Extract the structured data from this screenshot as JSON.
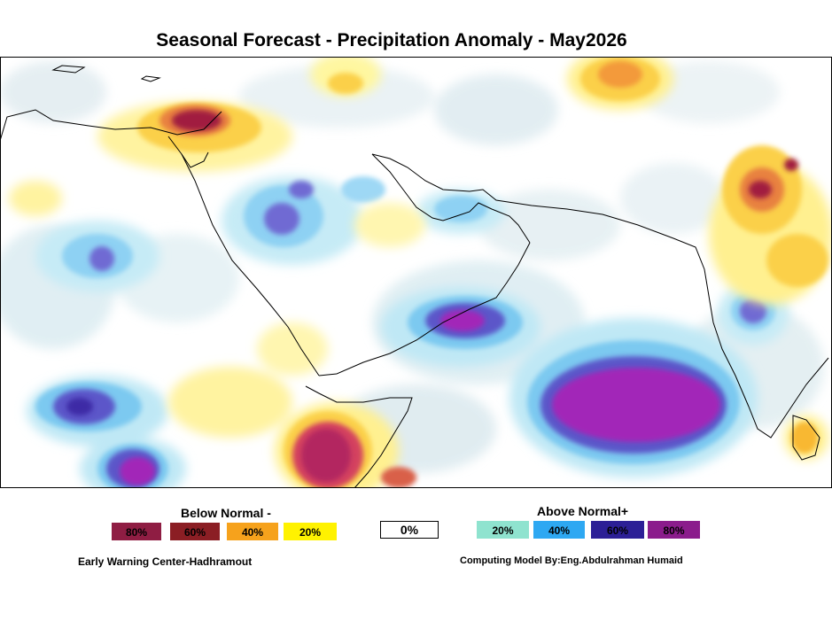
{
  "title": "Seasonal Forecast - Precipitation Anomaly - May2026",
  "legend": {
    "below": {
      "heading": "Below Normal -",
      "items": [
        {
          "label": "80%",
          "color": "#8f1d43"
        },
        {
          "label": "60%",
          "color": "#8b1e24"
        },
        {
          "label": "40%",
          "color": "#f6a21c"
        },
        {
          "label": "20%",
          "color": "#fff200"
        }
      ]
    },
    "neutral": {
      "label": "0%",
      "color": "#ffffff"
    },
    "above": {
      "heading": "Above Normal+",
      "items": [
        {
          "label": "20%",
          "color": "#8fe3cf"
        },
        {
          "label": "40%",
          "color": "#2ea8f2"
        },
        {
          "label": "60%",
          "color": "#2c1f96"
        },
        {
          "label": "80%",
          "color": "#8b1c8c"
        }
      ]
    }
  },
  "credits": {
    "left": "Early Warning Center-Hadhramout",
    "right": "Computing Model By:Eng.Abdulrahman Humaid"
  }
}
